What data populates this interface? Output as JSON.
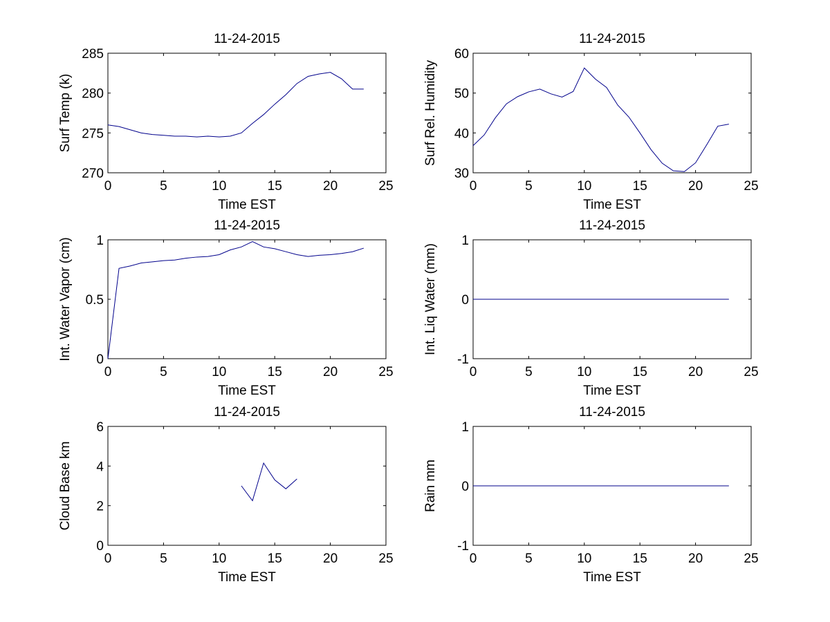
{
  "chart_data": [
    {
      "type": "line",
      "title": "11-24-2015",
      "xlabel": "Time EST",
      "ylabel": "Surf Temp (k)",
      "xlim": [
        0,
        25
      ],
      "ylim": [
        270,
        285
      ],
      "xticks": [
        0,
        5,
        10,
        15,
        20,
        25
      ],
      "yticks": [
        270,
        275,
        280,
        285
      ],
      "grid": false,
      "color": "#00008b",
      "x": [
        0,
        1,
        2,
        3,
        4,
        5,
        6,
        7,
        8,
        9,
        10,
        11,
        12,
        13,
        14,
        15,
        16,
        17,
        18,
        19,
        20,
        21,
        22,
        23
      ],
      "y": [
        276.0,
        275.8,
        275.4,
        275.0,
        274.8,
        274.7,
        274.6,
        274.6,
        274.5,
        274.6,
        274.5,
        274.6,
        275.0,
        276.2,
        277.3,
        278.6,
        279.8,
        281.2,
        282.1,
        282.4,
        282.6,
        281.8,
        280.5,
        280.5
      ]
    },
    {
      "type": "line",
      "title": "11-24-2015",
      "xlabel": "Time EST",
      "ylabel": "Surf Rel. Humidity",
      "xlim": [
        0,
        25
      ],
      "ylim": [
        30,
        60
      ],
      "xticks": [
        0,
        5,
        10,
        15,
        20,
        25
      ],
      "yticks": [
        30,
        40,
        50,
        60
      ],
      "grid": false,
      "color": "#00008b",
      "x": [
        0,
        1,
        2,
        3,
        4,
        5,
        6,
        7,
        8,
        9,
        10,
        11,
        12,
        13,
        14,
        15,
        16,
        17,
        18,
        19,
        20,
        21,
        22,
        23
      ],
      "y": [
        36.8,
        39.5,
        43.8,
        47.3,
        49.1,
        50.3,
        51.0,
        49.8,
        49.0,
        50.4,
        56.3,
        53.5,
        51.4,
        47.0,
        44.0,
        40.0,
        35.8,
        32.4,
        30.5,
        30.3,
        32.5,
        37.0,
        41.7,
        42.2
      ]
    },
    {
      "type": "line",
      "title": "11-24-2015",
      "xlabel": "Time EST",
      "ylabel": "Int. Water Vapor (cm)",
      "xlim": [
        0,
        25
      ],
      "ylim": [
        0,
        1
      ],
      "xticks": [
        0,
        5,
        10,
        15,
        20,
        25
      ],
      "yticks": [
        0,
        0.5,
        1
      ],
      "grid": false,
      "color": "#00008b",
      "x": [
        0,
        1,
        2,
        3,
        4,
        5,
        6,
        7,
        8,
        9,
        10,
        11,
        12,
        13,
        14,
        15,
        16,
        17,
        18,
        19,
        20,
        21,
        22,
        23
      ],
      "y": [
        0.0,
        0.76,
        0.78,
        0.805,
        0.815,
        0.825,
        0.83,
        0.845,
        0.855,
        0.86,
        0.875,
        0.915,
        0.94,
        0.985,
        0.94,
        0.925,
        0.9,
        0.875,
        0.86,
        0.87,
        0.875,
        0.885,
        0.9,
        0.93
      ]
    },
    {
      "type": "line",
      "title": "11-24-2015",
      "xlabel": "Time EST",
      "ylabel": "Int. Liq Water (mm)",
      "xlim": [
        0,
        25
      ],
      "ylim": [
        -1,
        1
      ],
      "xticks": [
        0,
        5,
        10,
        15,
        20,
        25
      ],
      "yticks": [
        -1,
        0,
        1
      ],
      "grid": false,
      "color": "#00008b",
      "x": [
        0,
        1,
        2,
        3,
        4,
        5,
        6,
        7,
        8,
        9,
        10,
        11,
        12,
        13,
        14,
        15,
        16,
        17,
        18,
        19,
        20,
        21,
        22,
        23
      ],
      "y": [
        0,
        0,
        0,
        0,
        0,
        0,
        0,
        0,
        0,
        0,
        0,
        0,
        0,
        0,
        0,
        0,
        0,
        0,
        0,
        0,
        0,
        0,
        0,
        0
      ]
    },
    {
      "type": "line",
      "title": "11-24-2015",
      "xlabel": "Time EST",
      "ylabel": "Cloud Base km",
      "xlim": [
        0,
        25
      ],
      "ylim": [
        0,
        6
      ],
      "xticks": [
        0,
        5,
        10,
        15,
        20,
        25
      ],
      "yticks": [
        0,
        2,
        4,
        6
      ],
      "grid": false,
      "color": "#00008b",
      "x": [
        12,
        13,
        14,
        15,
        16,
        17
      ],
      "y": [
        3.0,
        2.25,
        4.15,
        3.3,
        2.85,
        3.35
      ]
    },
    {
      "type": "line",
      "title": "11-24-2015",
      "xlabel": "Time EST",
      "ylabel": "Rain mm",
      "xlim": [
        0,
        25
      ],
      "ylim": [
        -1,
        1
      ],
      "xticks": [
        0,
        5,
        10,
        15,
        20,
        25
      ],
      "yticks": [
        -1,
        0,
        1
      ],
      "grid": false,
      "color": "#00008b",
      "x": [
        0,
        1,
        2,
        3,
        4,
        5,
        6,
        7,
        8,
        9,
        10,
        11,
        12,
        13,
        14,
        15,
        16,
        17,
        18,
        19,
        20,
        21,
        22,
        23
      ],
      "y": [
        0,
        0,
        0,
        0,
        0,
        0,
        0,
        0,
        0,
        0,
        0,
        0,
        0,
        0,
        0,
        0,
        0,
        0,
        0,
        0,
        0,
        0,
        0,
        0
      ]
    }
  ]
}
